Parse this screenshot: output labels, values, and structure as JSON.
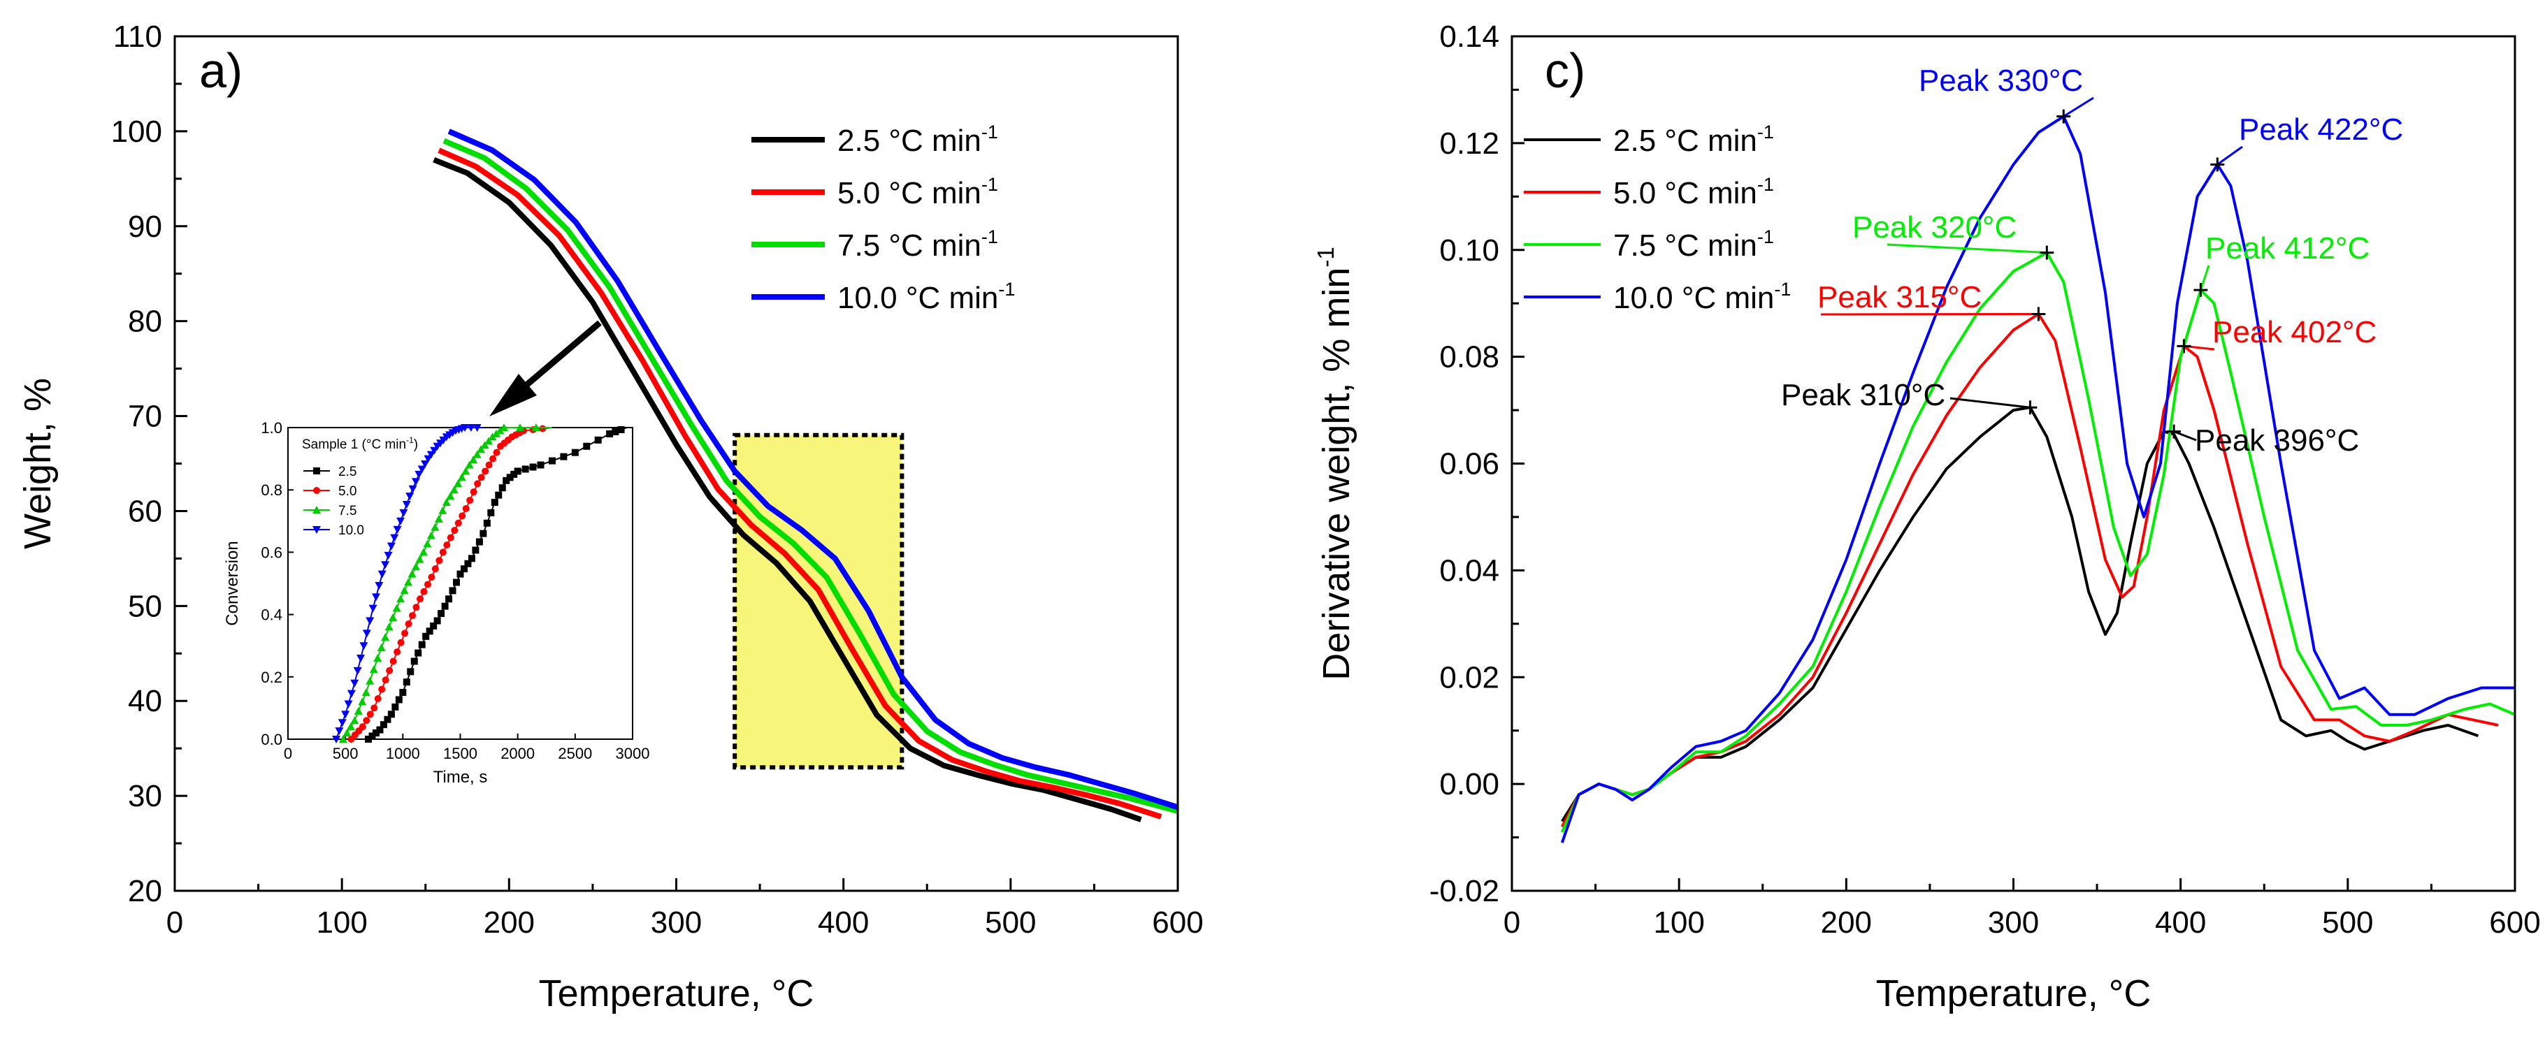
{
  "chart_data": [
    {
      "type": "line",
      "panel_label": "a)",
      "title": "",
      "xlabel": "Temperature, °C",
      "ylabel": "Weight, %",
      "xlim": [
        0,
        600
      ],
      "ylim": [
        20,
        110
      ],
      "xticks": [
        0,
        100,
        200,
        300,
        400,
        500,
        600
      ],
      "yticks": [
        20,
        30,
        40,
        50,
        60,
        70,
        80,
        90,
        100,
        110
      ],
      "legend_position": "top-right",
      "highlight_region": {
        "x": [
          335,
          435
        ],
        "y": [
          33,
          68
        ],
        "color": "#f7f57a"
      },
      "series": [
        {
          "name": "2.5 °C min",
          "sup": "-1",
          "color": "#000000",
          "x": [
            155,
            175,
            200,
            225,
            250,
            275,
            300,
            320,
            340,
            360,
            380,
            400,
            420,
            440,
            460,
            480,
            500,
            520,
            540,
            560,
            578
          ],
          "y": [
            97,
            95.6,
            92.5,
            88,
            82,
            74.5,
            67,
            61.5,
            57.5,
            54.5,
            50.5,
            44.5,
            38.5,
            35,
            33.2,
            32.2,
            31.3,
            30.6,
            29.6,
            28.6,
            27.5
          ]
        },
        {
          "name": "5.0 °C min",
          "sup": "-1",
          "color": "#ff0000",
          "x": [
            158,
            180,
            205,
            230,
            255,
            280,
            305,
            325,
            345,
            365,
            385,
            405,
            425,
            445,
            465,
            485,
            505,
            525,
            545,
            565,
            590
          ],
          "y": [
            98,
            96.3,
            93.3,
            89,
            83,
            75.8,
            68,
            62.3,
            58.5,
            55.5,
            51.7,
            45.5,
            39.5,
            35.8,
            33.8,
            32.6,
            31.6,
            30.9,
            30.1,
            29.2,
            27.8
          ]
        },
        {
          "name": "7.5 °C min",
          "sup": "-1",
          "color": "#00dd00",
          "x": [
            161,
            185,
            210,
            235,
            260,
            285,
            310,
            330,
            350,
            370,
            390,
            410,
            430,
            450,
            470,
            490,
            510,
            530,
            550,
            570,
            600
          ],
          "y": [
            99,
            97.2,
            94,
            89.6,
            83.6,
            76.2,
            68.8,
            63.2,
            59.4,
            56.6,
            53,
            47,
            40.7,
            36.8,
            34.6,
            33.3,
            32.2,
            31.4,
            30.6,
            29.8,
            28.4
          ]
        },
        {
          "name": "10.0 °C min",
          "sup": "-1",
          "color": "#0000ff",
          "x": [
            164,
            190,
            215,
            240,
            265,
            290,
            315,
            335,
            355,
            375,
            395,
            415,
            435,
            455,
            475,
            495,
            515,
            535,
            555,
            575,
            600
          ],
          "y": [
            100,
            98,
            94.9,
            90.4,
            84.2,
            76.8,
            69.5,
            64.2,
            60.5,
            58,
            55,
            49.5,
            42.5,
            38,
            35.5,
            34,
            33,
            32.2,
            31.2,
            30.2,
            28.8
          ]
        }
      ],
      "inset": {
        "type": "scatter",
        "title": "Sample 1 (°C min",
        "title_sup": "-1",
        "title_close": ")",
        "xlabel": "Time, s",
        "ylabel": "Conversion",
        "xlim": [
          0,
          3000
        ],
        "ylim": [
          0,
          1.0
        ],
        "xticks": [
          0,
          500,
          1000,
          1500,
          2000,
          2500,
          3000
        ],
        "yticks": [
          "0.0",
          "0.2",
          "0.4",
          "0.6",
          "0.8",
          "1.0"
        ],
        "series": [
          {
            "name": "2.5",
            "color": "#000000",
            "marker": "square",
            "x": [
              700,
              800,
              900,
              1000,
              1100,
              1200,
              1300,
              1400,
              1500,
              1600,
              1700,
              1800,
              1900,
              2000,
              2200,
              2500,
              2800,
              2950
            ],
            "y": [
              0,
              0.03,
              0.08,
              0.15,
              0.25,
              0.33,
              0.38,
              0.45,
              0.53,
              0.58,
              0.66,
              0.76,
              0.83,
              0.86,
              0.88,
              0.92,
              0.98,
              1.0
            ]
          },
          {
            "name": "5.0",
            "color": "#ff0000",
            "marker": "circle",
            "x": [
              550,
              650,
              750,
              850,
              950,
              1050,
              1150,
              1250,
              1350,
              1450,
              1550,
              1650,
              1750,
              1850,
              1950,
              2050,
              2300
            ],
            "y": [
              0,
              0.04,
              0.1,
              0.19,
              0.28,
              0.37,
              0.45,
              0.52,
              0.6,
              0.67,
              0.74,
              0.82,
              0.88,
              0.94,
              0.97,
              0.99,
              1.0
            ]
          },
          {
            "name": "7.5",
            "color": "#00cc00",
            "marker": "triangle-up",
            "x": [
              480,
              580,
              680,
              780,
              880,
              980,
              1080,
              1180,
              1280,
              1380,
              1480,
              1580,
              1680,
              1780,
              1880,
              2300
            ],
            "y": [
              0,
              0.06,
              0.15,
              0.26,
              0.36,
              0.45,
              0.53,
              0.6,
              0.68,
              0.76,
              0.82,
              0.88,
              0.93,
              0.97,
              1.0,
              1.0
            ]
          },
          {
            "name": "10.0",
            "color": "#0000ff",
            "marker": "triangle-down",
            "x": [
              420,
              500,
              580,
              660,
              740,
              820,
              900,
              980,
              1060,
              1140,
              1220,
              1300,
              1380,
              1460,
              1540,
              1700
            ],
            "y": [
              0,
              0.08,
              0.18,
              0.3,
              0.42,
              0.53,
              0.62,
              0.7,
              0.78,
              0.85,
              0.9,
              0.94,
              0.97,
              0.99,
              1.0,
              1.0
            ]
          }
        ]
      }
    },
    {
      "type": "line",
      "panel_label": "c)",
      "title": "",
      "xlabel": "Temperature, °C",
      "ylabel": "Derivative weight, % min",
      "ylabel_sup": "-1",
      "xlim": [
        0,
        600
      ],
      "ylim": [
        -0.02,
        0.14
      ],
      "xticks": [
        0,
        100,
        200,
        300,
        400,
        500,
        600
      ],
      "yticks": [
        "-0.02",
        "0.00",
        "0.02",
        "0.04",
        "0.06",
        "0.08",
        "0.10",
        "0.12",
        "0.14"
      ],
      "legend_position": "top-left",
      "series": [
        {
          "name": "2.5 °C min",
          "sup": "-1",
          "color": "#000000",
          "x": [
            30,
            40,
            52,
            62,
            72,
            82,
            95,
            110,
            125,
            140,
            160,
            180,
            200,
            220,
            240,
            260,
            280,
            300,
            310,
            320,
            335,
            345,
            355,
            362,
            370,
            380,
            390,
            396,
            405,
            420,
            440,
            460,
            475,
            490,
            500,
            510,
            525,
            545,
            560,
            578
          ],
          "y": [
            -0.007,
            -0.002,
            0.0,
            -0.001,
            -0.002,
            -0.001,
            0.002,
            0.005,
            0.005,
            0.007,
            0.012,
            0.018,
            0.029,
            0.04,
            0.05,
            0.059,
            0.065,
            0.07,
            0.0705,
            0.065,
            0.05,
            0.036,
            0.028,
            0.032,
            0.045,
            0.06,
            0.066,
            0.0655,
            0.06,
            0.048,
            0.03,
            0.012,
            0.009,
            0.01,
            0.008,
            0.0065,
            0.008,
            0.01,
            0.011,
            0.009
          ]
        },
        {
          "name": "5.0 °C min",
          "sup": "-1",
          "color": "#ff0000",
          "x": [
            30,
            40,
            52,
            62,
            72,
            82,
            95,
            110,
            125,
            140,
            160,
            180,
            200,
            220,
            240,
            260,
            280,
            300,
            315,
            325,
            340,
            355,
            365,
            372,
            380,
            390,
            402,
            410,
            420,
            440,
            460,
            480,
            495,
            510,
            525,
            540,
            560,
            575,
            590
          ],
          "y": [
            -0.008,
            -0.002,
            0.0,
            -0.001,
            -0.002,
            -0.001,
            0.002,
            0.005,
            0.006,
            0.008,
            0.013,
            0.02,
            0.032,
            0.045,
            0.058,
            0.069,
            0.078,
            0.085,
            0.088,
            0.083,
            0.063,
            0.042,
            0.035,
            0.037,
            0.05,
            0.07,
            0.082,
            0.08,
            0.07,
            0.045,
            0.022,
            0.012,
            0.012,
            0.009,
            0.008,
            0.01,
            0.013,
            0.012,
            0.011
          ]
        },
        {
          "name": "7.5 °C min",
          "sup": "-1",
          "color": "#00ee00",
          "x": [
            30,
            40,
            52,
            62,
            72,
            82,
            95,
            110,
            125,
            140,
            160,
            180,
            200,
            220,
            240,
            260,
            280,
            300,
            320,
            330,
            345,
            360,
            370,
            380,
            390,
            400,
            412,
            420,
            430,
            450,
            470,
            490,
            505,
            520,
            535,
            550,
            570,
            585,
            600
          ],
          "y": [
            -0.009,
            -0.002,
            0.0,
            -0.001,
            -0.002,
            -0.001,
            0.002,
            0.006,
            0.006,
            0.009,
            0.015,
            0.022,
            0.036,
            0.052,
            0.067,
            0.079,
            0.089,
            0.096,
            0.0995,
            0.094,
            0.072,
            0.048,
            0.039,
            0.043,
            0.058,
            0.08,
            0.0925,
            0.09,
            0.077,
            0.05,
            0.025,
            0.014,
            0.0145,
            0.011,
            0.011,
            0.012,
            0.014,
            0.015,
            0.013
          ]
        },
        {
          "name": "10.0 °C min",
          "sup": "-1",
          "color": "#0000ff",
          "x": [
            30,
            40,
            52,
            62,
            72,
            82,
            95,
            110,
            125,
            140,
            160,
            180,
            200,
            220,
            240,
            260,
            280,
            300,
            315,
            330,
            340,
            355,
            368,
            378,
            388,
            398,
            410,
            422,
            430,
            440,
            460,
            480,
            495,
            510,
            525,
            540,
            560,
            580,
            600
          ],
          "y": [
            -0.011,
            -0.002,
            0.0,
            -0.001,
            -0.003,
            -0.001,
            0.003,
            0.007,
            0.008,
            0.01,
            0.017,
            0.027,
            0.042,
            0.06,
            0.077,
            0.093,
            0.106,
            0.116,
            0.122,
            0.125,
            0.118,
            0.092,
            0.06,
            0.05,
            0.06,
            0.09,
            0.11,
            0.116,
            0.112,
            0.098,
            0.06,
            0.025,
            0.016,
            0.018,
            0.013,
            0.013,
            0.016,
            0.018,
            0.018
          ]
        }
      ],
      "annotations": [
        {
          "text": "Peak 330°C",
          "color": "#0000ff",
          "x": 330,
          "y": 0.125
        },
        {
          "text": "Peak 422°C",
          "color": "#0000ff",
          "x": 422,
          "y": 0.116
        },
        {
          "text": "Peak 320°C",
          "color": "#00ee00",
          "x": 320,
          "y": 0.0995
        },
        {
          "text": "Peak 412°C",
          "color": "#00ee00",
          "x": 412,
          "y": 0.0925
        },
        {
          "text": "Peak 315°C",
          "color": "#ff0000",
          "x": 315,
          "y": 0.088
        },
        {
          "text": "Peak 402°C",
          "color": "#ff0000",
          "x": 402,
          "y": 0.082
        },
        {
          "text": "Peak 310°C",
          "color": "#000000",
          "x": 310,
          "y": 0.0705
        },
        {
          "text": "Peak 396°C",
          "color": "#000000",
          "x": 396,
          "y": 0.066
        }
      ]
    }
  ]
}
